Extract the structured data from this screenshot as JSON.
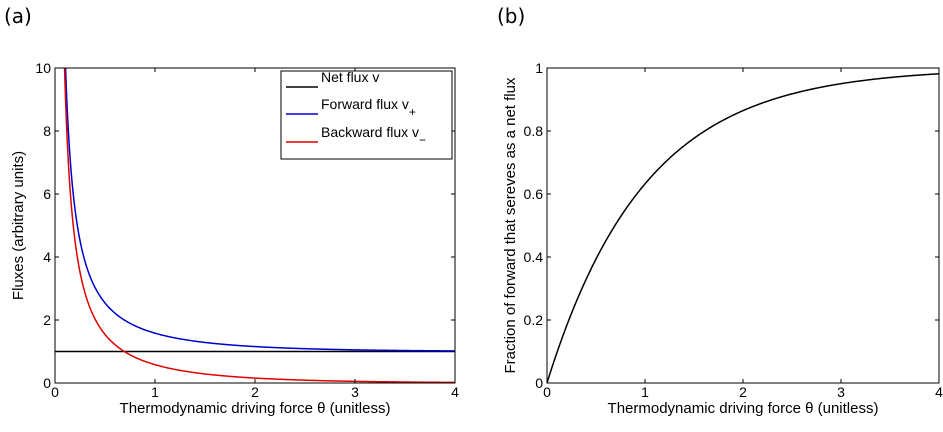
{
  "panels": [
    {
      "letter": "(a)"
    },
    {
      "letter": "(b)"
    }
  ],
  "chart_data": [
    {
      "type": "line",
      "title": "",
      "xlabel": "Thermodynamic driving force θ (unitless)",
      "ylabel": "Fluxes (arbitrary units)",
      "xlim": [
        0,
        4
      ],
      "ylim": [
        0,
        10
      ],
      "xticks": [
        0,
        1,
        2,
        3,
        4
      ],
      "yticks": [
        0,
        2,
        4,
        6,
        8,
        10
      ],
      "grid": false,
      "legend_position": "top-right",
      "series": [
        {
          "name": "Net flux v",
          "color": "#000000",
          "x": [
            0.1,
            0.2,
            0.5,
            1,
            2,
            3,
            4
          ],
          "y": [
            1,
            1,
            1,
            1,
            1,
            1,
            1
          ]
        },
        {
          "name": "Forward flux v+",
          "legend_main": "Forward flux v",
          "legend_sub": "+",
          "color": "#0000cc",
          "x": [
            0.1,
            0.2,
            0.3,
            0.5,
            0.7,
            1.0,
            1.5,
            2.0,
            3.0,
            4.0
          ],
          "y": [
            10.51,
            5.52,
            3.86,
            2.54,
            1.99,
            1.58,
            1.29,
            1.16,
            1.05,
            1.02
          ]
        },
        {
          "name": "Backward flux v-",
          "legend_main": "Backward flux v",
          "legend_sub": "−",
          "color": "#e00000",
          "x": [
            0.1,
            0.2,
            0.3,
            0.5,
            0.7,
            1.0,
            1.5,
            2.0,
            3.0,
            4.0
          ],
          "y": [
            9.51,
            4.52,
            2.86,
            1.54,
            0.99,
            0.58,
            0.29,
            0.16,
            0.05,
            0.02
          ]
        }
      ]
    },
    {
      "type": "line",
      "title": "",
      "xlabel": "Thermodynamic driving force θ (unitless)",
      "ylabel": "Fraction of forward that sereves as a net flux",
      "xlim": [
        0,
        4
      ],
      "ylim": [
        0,
        1
      ],
      "xticks": [
        0,
        1,
        2,
        3,
        4
      ],
      "yticks": [
        0,
        0.2,
        0.4,
        0.6,
        0.8,
        1
      ],
      "grid": false,
      "series": [
        {
          "color": "#000000",
          "x": [
            0,
            0.1,
            0.25,
            0.5,
            0.75,
            1.0,
            1.5,
            2.0,
            2.5,
            3.0,
            3.5,
            4.0
          ],
          "y": [
            0,
            0.095,
            0.221,
            0.393,
            0.528,
            0.632,
            0.777,
            0.865,
            0.918,
            0.95,
            0.97,
            0.982
          ]
        }
      ]
    }
  ]
}
